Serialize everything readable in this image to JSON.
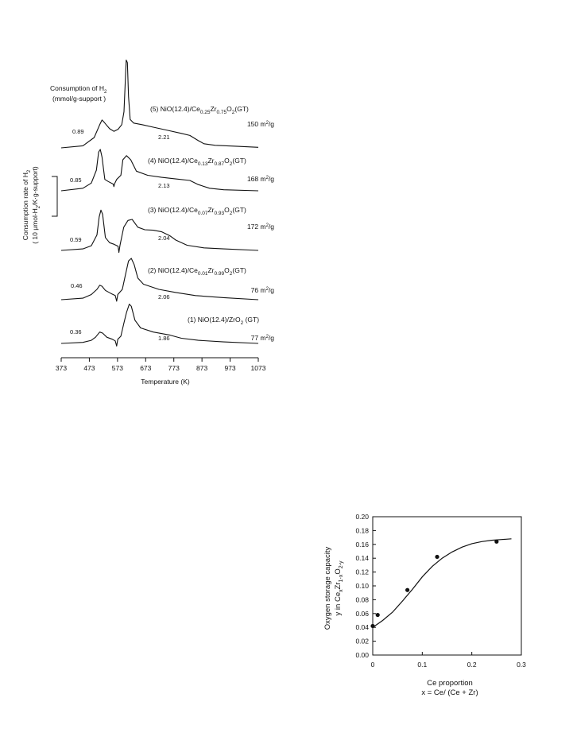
{
  "chart_data": [
    {
      "type": "line",
      "xlabel": "Temperature (K)",
      "ylabel": "Consumption rate of H2",
      "ylabel_unit": "( 10 μmol-H2/K·g-support)",
      "consumption_title": "Consumption of H2",
      "consumption_subtitle": "(mmol/g-support )",
      "x_ticks": [
        373,
        473,
        573,
        673,
        773,
        873,
        973,
        1073
      ],
      "xlim": [
        373,
        1073
      ],
      "series": [
        {
          "name": "(1) NiO(12.4)/ZrO2 (GT)",
          "surface_area": "77 m2/g",
          "low_label": "0.36",
          "high_label": "1.86",
          "points": [
            [
              373,
              0.0
            ],
            [
              450,
              0.2
            ],
            [
              480,
              0.6
            ],
            [
              495,
              1.2
            ],
            [
              510,
              2.2
            ],
            [
              520,
              2.0
            ],
            [
              535,
              1.2
            ],
            [
              555,
              0.8
            ],
            [
              565,
              0.5
            ],
            [
              570,
              -0.5
            ],
            [
              574,
              0.8
            ],
            [
              585,
              1.4
            ],
            [
              595,
              3.8
            ],
            [
              605,
              6.0
            ],
            [
              615,
              7.6
            ],
            [
              622,
              7.2
            ],
            [
              635,
              4.5
            ],
            [
              655,
              3.0
            ],
            [
              700,
              2.2
            ],
            [
              760,
              1.6
            ],
            [
              800,
              1.0
            ],
            [
              860,
              0.6
            ],
            [
              950,
              0.3
            ],
            [
              1073,
              0.0
            ]
          ]
        },
        {
          "name": "(2) NiO(12.4)/Ce0.01Zr0.99O2(GT)",
          "surface_area": "76 m2/g",
          "low_label": "0.46",
          "high_label": "2.06",
          "points": [
            [
              373,
              0.0
            ],
            [
              450,
              0.3
            ],
            [
              480,
              1.0
            ],
            [
              500,
              2.0
            ],
            [
              510,
              2.8
            ],
            [
              518,
              2.6
            ],
            [
              530,
              1.8
            ],
            [
              550,
              1.2
            ],
            [
              565,
              0.8
            ],
            [
              570,
              -0.3
            ],
            [
              574,
              1.0
            ],
            [
              590,
              2.0
            ],
            [
              600,
              4.5
            ],
            [
              612,
              7.5
            ],
            [
              622,
              8.0
            ],
            [
              632,
              6.8
            ],
            [
              645,
              4.2
            ],
            [
              665,
              3.0
            ],
            [
              720,
              2.0
            ],
            [
              780,
              1.4
            ],
            [
              850,
              0.8
            ],
            [
              950,
              0.4
            ],
            [
              1073,
              0.0
            ]
          ]
        },
        {
          "name": "(3) NiO(12.4)/Ce0.07Zr0.93O2(GT)",
          "surface_area": "172 m2/g",
          "low_label": "0.59",
          "high_label": "2.04",
          "points": [
            [
              373,
              0.0
            ],
            [
              450,
              0.3
            ],
            [
              480,
              0.9
            ],
            [
              500,
              3.0
            ],
            [
              508,
              6.5
            ],
            [
              514,
              7.8
            ],
            [
              520,
              7.0
            ],
            [
              530,
              2.5
            ],
            [
              545,
              1.5
            ],
            [
              560,
              1.2
            ],
            [
              575,
              0.8
            ],
            [
              578,
              -0.4
            ],
            [
              582,
              1.0
            ],
            [
              595,
              4.5
            ],
            [
              610,
              5.8
            ],
            [
              625,
              6.0
            ],
            [
              645,
              4.5
            ],
            [
              670,
              4.0
            ],
            [
              700,
              3.9
            ],
            [
              730,
              3.6
            ],
            [
              760,
              2.8
            ],
            [
              780,
              2.0
            ],
            [
              820,
              1.0
            ],
            [
              880,
              0.5
            ],
            [
              950,
              0.3
            ],
            [
              1073,
              0.0
            ]
          ]
        },
        {
          "name": "(4) NiO(12.4)/Ce0.13Zr0.87O2(GT)",
          "surface_area": "168 m2/g",
          "low_label": "0.85",
          "high_label": "2.13",
          "points": [
            [
              373,
              0.0
            ],
            [
              450,
              0.5
            ],
            [
              480,
              1.5
            ],
            [
              498,
              4.0
            ],
            [
              506,
              7.5
            ],
            [
              512,
              8.0
            ],
            [
              518,
              6.5
            ],
            [
              528,
              2.2
            ],
            [
              540,
              1.8
            ],
            [
              558,
              1.3
            ],
            [
              560,
              0.8
            ],
            [
              563,
              1.4
            ],
            [
              570,
              2.2
            ],
            [
              585,
              3.0
            ],
            [
              592,
              6.0
            ],
            [
              605,
              6.8
            ],
            [
              620,
              6.0
            ],
            [
              640,
              3.8
            ],
            [
              680,
              3.0
            ],
            [
              730,
              2.6
            ],
            [
              780,
              2.3
            ],
            [
              830,
              2.0
            ],
            [
              860,
              1.2
            ],
            [
              900,
              0.5
            ],
            [
              950,
              0.2
            ],
            [
              1073,
              0.0
            ]
          ]
        },
        {
          "name": "(5) NiO(12.4)/Ce0.25Zr0.75O2(GT)",
          "surface_area": "150 m2/g",
          "low_label": "0.89",
          "high_label": "2.21",
          "points": [
            [
              373,
              0.0
            ],
            [
              450,
              0.4
            ],
            [
              490,
              2.0
            ],
            [
              510,
              4.5
            ],
            [
              518,
              5.4
            ],
            [
              528,
              4.8
            ],
            [
              545,
              3.7
            ],
            [
              560,
              3.2
            ],
            [
              575,
              3.6
            ],
            [
              588,
              4.5
            ],
            [
              596,
              7.0
            ],
            [
              600,
              12.0
            ],
            [
              604,
              17.0
            ],
            [
              608,
              16.5
            ],
            [
              612,
              10.0
            ],
            [
              618,
              5.5
            ],
            [
              630,
              4.8
            ],
            [
              660,
              4.5
            ],
            [
              700,
              4.0
            ],
            [
              750,
              3.4
            ],
            [
              800,
              2.8
            ],
            [
              830,
              2.4
            ],
            [
              860,
              1.4
            ],
            [
              880,
              0.8
            ],
            [
              920,
              0.5
            ],
            [
              1000,
              0.3
            ],
            [
              1073,
              0.1
            ]
          ]
        }
      ]
    },
    {
      "type": "scatter",
      "xlabel_line1": "Ce proportion",
      "xlabel_line2": "x = Ce/ (Ce + Zr)",
      "ylabel_line1": "Oxygen storage capacity",
      "ylabel_line2": "y in CexZr1-xO2-y",
      "xlim": [
        0,
        0.3
      ],
      "ylim": [
        0,
        0.2
      ],
      "x_ticks": [
        "0",
        "0.1",
        "0.2",
        "0.3"
      ],
      "y_ticks": [
        "0.00",
        "0.02",
        "0.04",
        "0.06",
        "0.08",
        "0.10",
        "0.12",
        "0.14",
        "0.16",
        "0.18",
        "0.20"
      ],
      "points": [
        [
          0.0,
          0.042
        ],
        [
          0.01,
          0.058
        ],
        [
          0.07,
          0.094
        ],
        [
          0.13,
          0.142
        ],
        [
          0.25,
          0.164
        ]
      ],
      "fit_curve": [
        [
          0.0,
          0.04
        ],
        [
          0.02,
          0.05
        ],
        [
          0.04,
          0.062
        ],
        [
          0.06,
          0.078
        ],
        [
          0.08,
          0.095
        ],
        [
          0.1,
          0.113
        ],
        [
          0.12,
          0.128
        ],
        [
          0.14,
          0.14
        ],
        [
          0.16,
          0.149
        ],
        [
          0.18,
          0.156
        ],
        [
          0.2,
          0.161
        ],
        [
          0.22,
          0.164
        ],
        [
          0.24,
          0.166
        ],
        [
          0.26,
          0.167
        ],
        [
          0.28,
          0.168
        ]
      ]
    }
  ]
}
